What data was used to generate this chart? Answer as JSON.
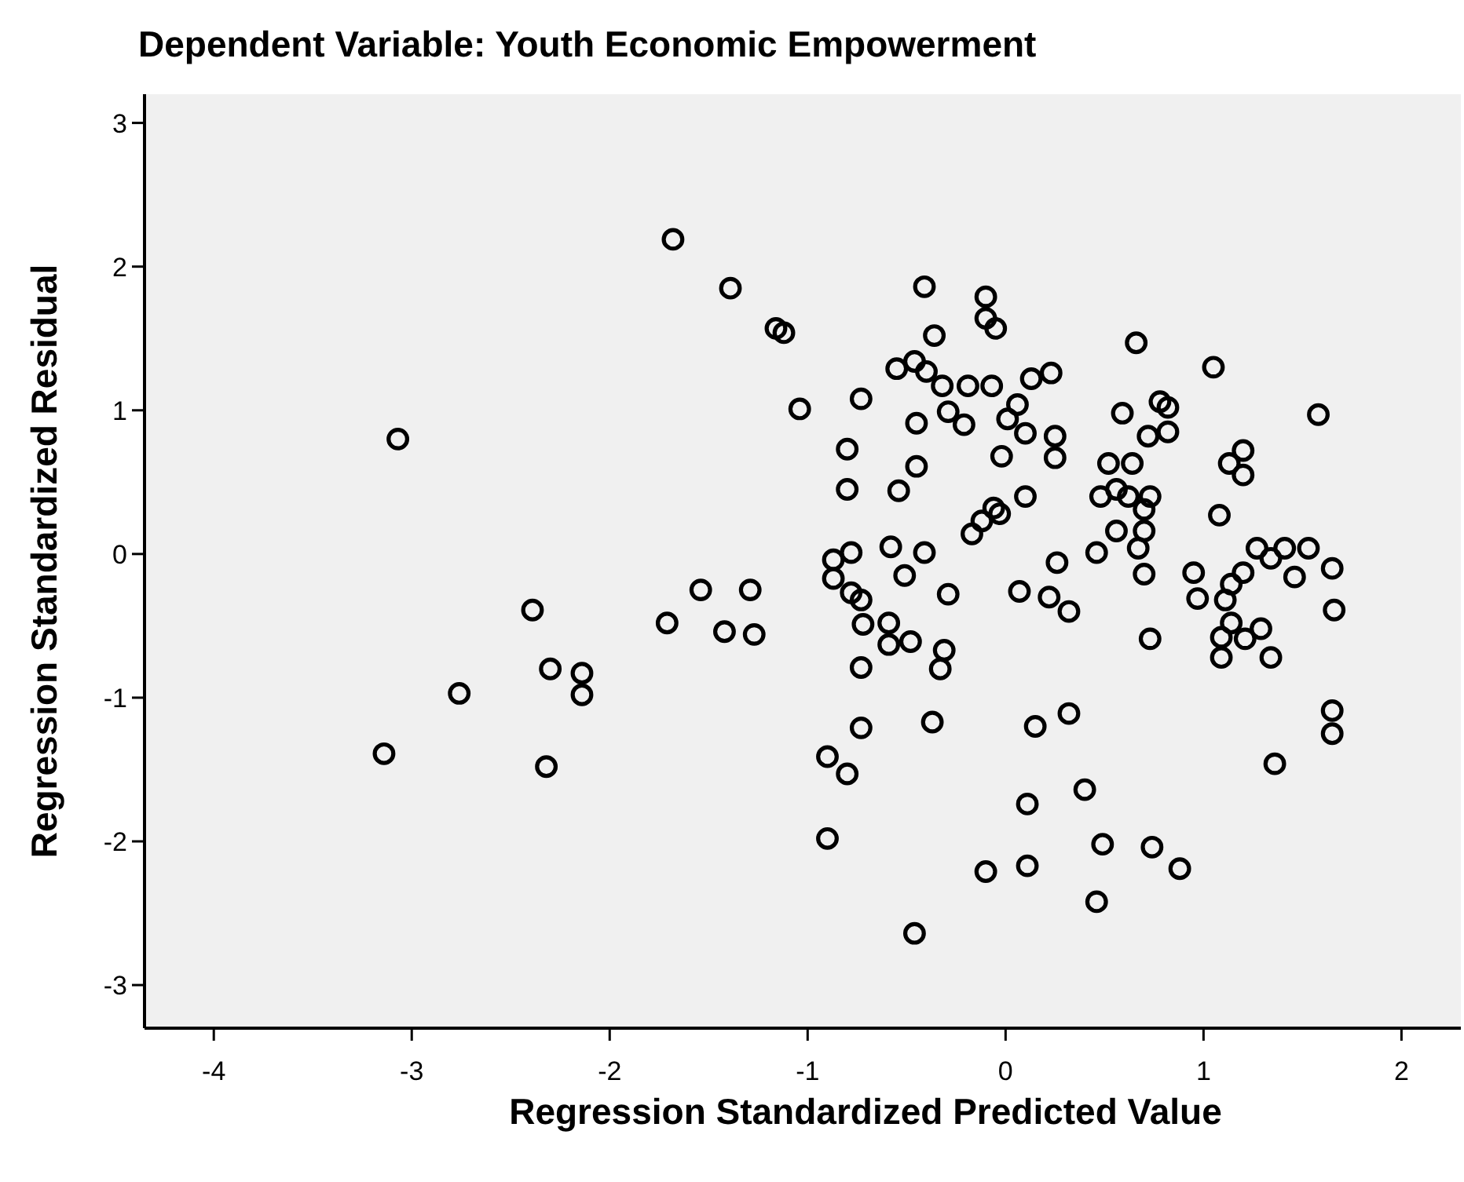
{
  "chart_data": {
    "type": "scatter",
    "title": "Dependent Variable: Youth Economic Empowerment",
    "xlabel": "Regression Standardized Predicted Value",
    "ylabel": "Regression Standardized Residual",
    "xlim": [
      -4.35,
      2.3
    ],
    "ylim": [
      -3.3,
      3.2
    ],
    "xticks": [
      -4,
      -3,
      -2,
      -1,
      0,
      1,
      2
    ],
    "yticks": [
      -3,
      -2,
      -1,
      0,
      1,
      2,
      3
    ],
    "grid": false,
    "marker": "circle",
    "series": [
      {
        "color": "#000000",
        "x": [
          -3.07,
          -3.14,
          -2.76,
          -2.39,
          -2.3,
          -2.32,
          -2.14,
          -2.14,
          -1.68,
          -1.39,
          -1.16,
          -1.12,
          -1.04,
          -0.8,
          -0.8,
          -0.87,
          -0.78,
          -0.87,
          -0.78,
          -0.73,
          -0.72,
          -0.73,
          -0.73,
          -0.9,
          -0.8,
          -0.9,
          -1.54,
          -1.29,
          -1.71,
          -1.42,
          -1.27,
          -0.41,
          -0.1,
          -0.1,
          -0.05,
          -0.36,
          0.66,
          1.05,
          -0.55,
          -0.46,
          -0.4,
          -0.32,
          -0.19,
          -0.07,
          0.13,
          0.23,
          -0.73,
          -0.29,
          -0.21,
          -0.45,
          0.06,
          0.01,
          0.1,
          0.25,
          0.25,
          -0.02,
          0.59,
          0.78,
          0.82,
          0.72,
          0.82,
          1.58,
          -0.45,
          -0.54,
          0.1,
          -0.17,
          -0.12,
          -0.06,
          -0.03,
          0.52,
          0.64,
          0.48,
          0.56,
          0.62,
          0.73,
          0.7,
          0.7,
          0.56,
          0.67,
          0.46,
          0.26,
          1.2,
          1.13,
          1.2,
          1.08,
          1.27,
          1.41,
          1.53,
          1.34,
          1.65,
          -0.58,
          -0.41,
          -0.59,
          -0.59,
          -0.48,
          -0.51,
          -0.29,
          -0.31,
          -0.33,
          -0.37,
          -0.1,
          0.11,
          -0.46,
          0.46,
          0.49,
          0.74,
          0.88,
          0.4,
          0.11,
          0.15,
          0.32,
          1.36,
          1.65,
          1.65,
          1.66,
          1.46,
          0.95,
          0.97,
          1.11,
          1.14,
          1.2,
          1.14,
          1.09,
          1.21,
          1.29,
          1.09,
          1.34,
          0.73,
          0.7,
          0.07,
          0.22,
          0.32
        ],
        "values": [
          0.8,
          -1.39,
          -0.97,
          -0.39,
          -0.8,
          -1.48,
          -0.83,
          -0.98,
          2.19,
          1.85,
          1.57,
          1.54,
          1.01,
          0.73,
          0.45,
          -0.04,
          0.01,
          -0.17,
          -0.27,
          -0.32,
          -0.49,
          -0.79,
          -1.21,
          -1.41,
          -1.53,
          -1.98,
          -0.25,
          -0.25,
          -0.48,
          -0.54,
          -0.56,
          1.86,
          1.79,
          1.64,
          1.57,
          1.52,
          1.47,
          1.3,
          1.29,
          1.34,
          1.27,
          1.17,
          1.17,
          1.17,
          1.22,
          1.26,
          1.08,
          0.99,
          0.9,
          0.91,
          1.04,
          0.94,
          0.84,
          0.82,
          0.67,
          0.68,
          0.98,
          1.06,
          1.02,
          0.82,
          0.85,
          0.97,
          0.61,
          0.44,
          0.4,
          0.14,
          0.23,
          0.32,
          0.28,
          0.63,
          0.63,
          0.4,
          0.45,
          0.4,
          0.4,
          0.31,
          0.16,
          0.16,
          0.04,
          0.01,
          -0.06,
          0.72,
          0.63,
          0.55,
          0.27,
          0.04,
          0.04,
          0.04,
          -0.03,
          -0.1,
          0.05,
          0.01,
          -0.48,
          -0.63,
          -0.61,
          -0.15,
          -0.28,
          -0.67,
          -0.8,
          -1.17,
          -2.21,
          -2.17,
          -2.64,
          -2.42,
          -2.02,
          -2.04,
          -2.19,
          -1.64,
          -1.74,
          -1.2,
          -1.11,
          -1.46,
          -1.09,
          -1.25,
          -0.39,
          -0.16,
          -0.13,
          -0.31,
          -0.32,
          -0.21,
          -0.13,
          -0.48,
          -0.58,
          -0.59,
          -0.52,
          -0.72,
          -0.72,
          -0.59,
          -0.14,
          -0.26,
          -0.3,
          -0.4
        ]
      }
    ]
  }
}
